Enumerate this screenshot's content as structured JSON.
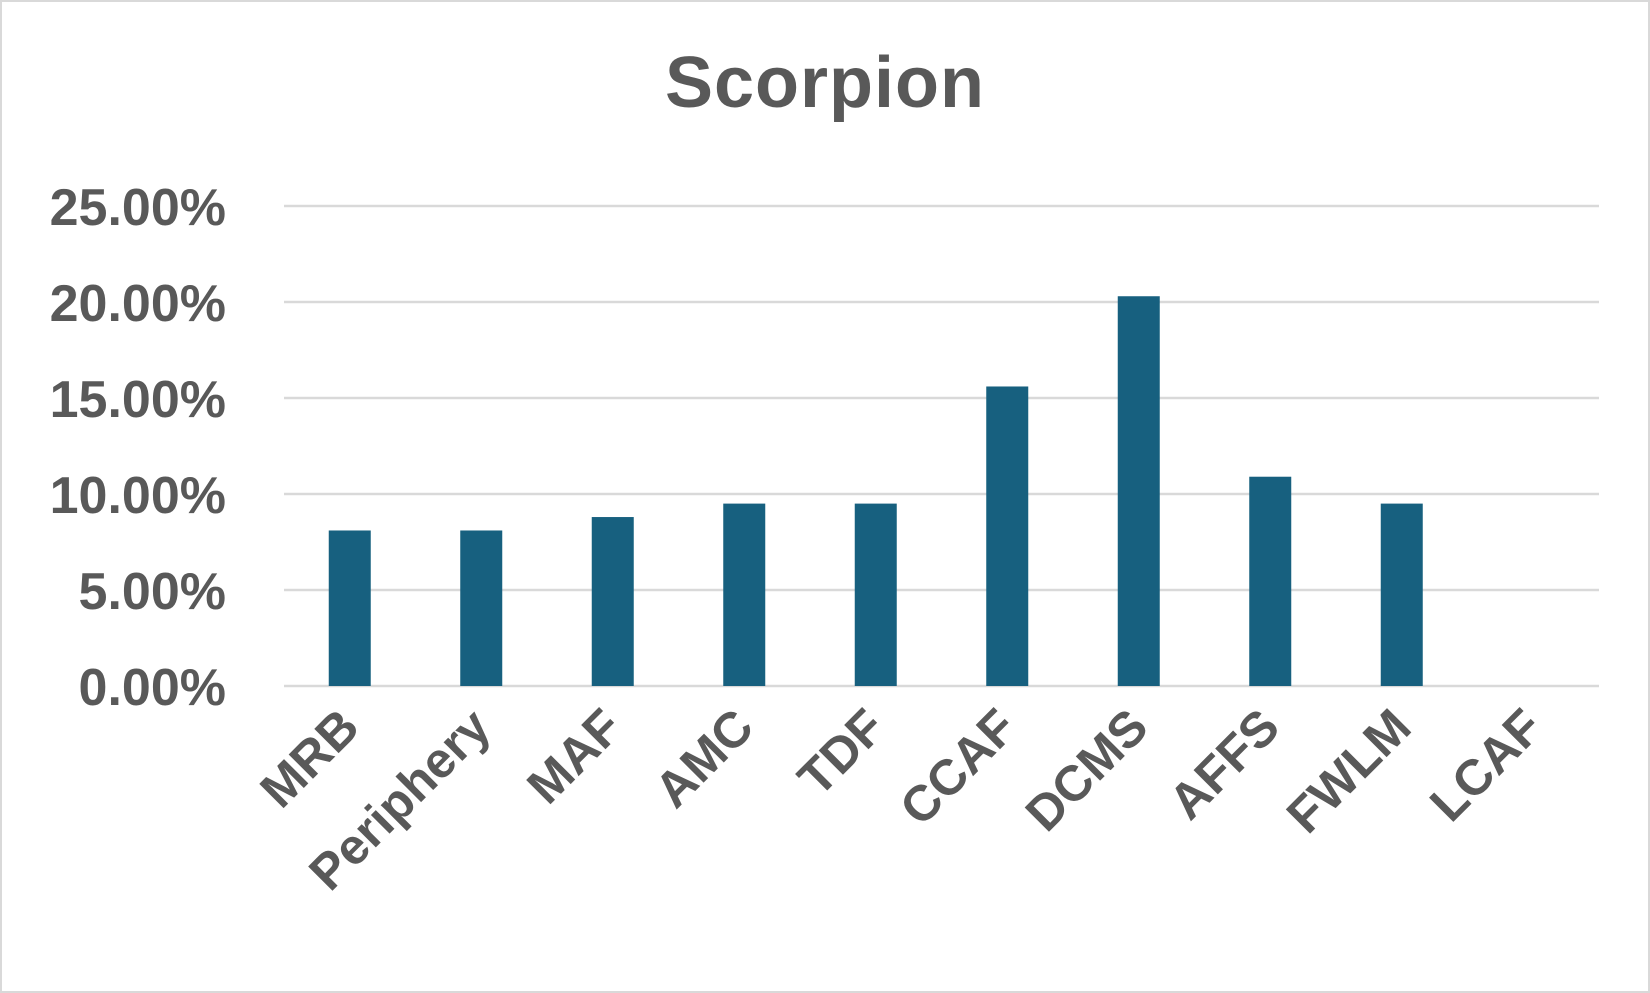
{
  "chart_data": {
    "type": "bar",
    "title": "Scorpion",
    "xlabel": "",
    "ylabel": "",
    "categories": [
      "MRB",
      "Periphery",
      "MAF",
      "AMC",
      "TDF",
      "CCAF",
      "DCMS",
      "AFFS",
      "FWLM",
      "LCAF"
    ],
    "values": [
      8.1,
      8.1,
      8.8,
      9.5,
      9.5,
      15.6,
      20.3,
      10.9,
      9.5,
      0.0
    ],
    "ylim": [
      0,
      25
    ],
    "yticks": [
      0,
      5,
      10,
      15,
      20,
      25
    ],
    "ytick_labels": [
      "0.00%",
      "5.00%",
      "10.00%",
      "15.00%",
      "20.00%",
      "25.00%"
    ],
    "grid": true,
    "legend": "none",
    "bar_color": "#17607f",
    "grid_color": "#d9d9d9",
    "text_color": "#595959"
  }
}
